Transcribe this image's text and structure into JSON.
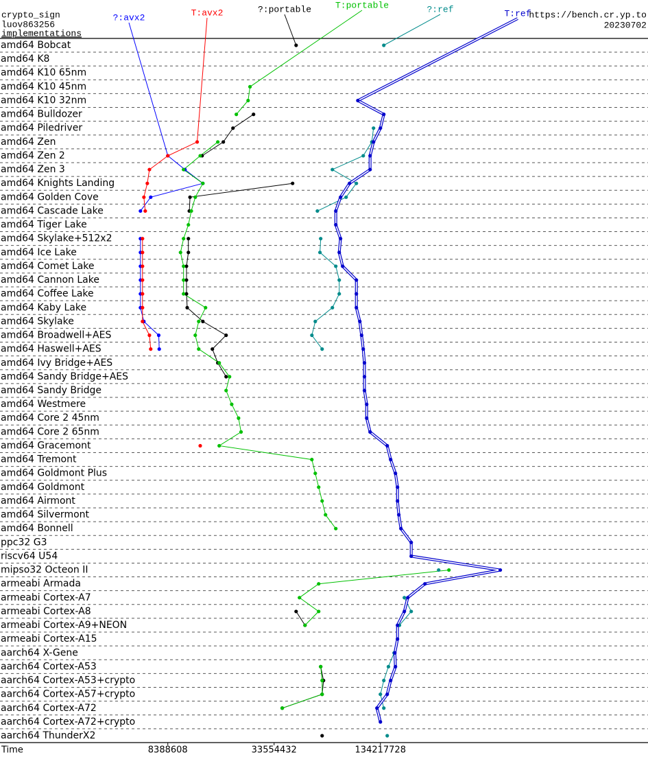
{
  "header": {
    "title": "crypto_sign",
    "subtitle": "luov863256",
    "section": "implementations",
    "url": "https://bench.cr.yp.to",
    "date": "20230702"
  },
  "chart_data": {
    "type": "line",
    "orientation": "horizontal",
    "x_label": "Time",
    "xscale": "log",
    "xlim": [
      940000,
      4400000000
    ],
    "xticks": [
      8388608,
      33554432,
      134217728
    ],
    "categories": [
      "amd64 Bobcat",
      "amd64 K8",
      "amd64 K10 65nm",
      "amd64 K10 45nm",
      "amd64 K10 32nm",
      "amd64 Bulldozer",
      "amd64 Piledriver",
      "amd64 Zen",
      "amd64 Zen 2",
      "amd64 Zen 3",
      "amd64 Knights Landing",
      "amd64 Golden Cove",
      "amd64 Cascade Lake",
      "amd64 Tiger Lake",
      "amd64 Skylake+512x2",
      "amd64 Ice Lake",
      "amd64 Comet Lake",
      "amd64 Cannon Lake",
      "amd64 Coffee Lake",
      "amd64 Kaby Lake",
      "amd64 Skylake",
      "amd64 Broadwell+AES",
      "amd64 Haswell+AES",
      "amd64 Ivy Bridge+AES",
      "amd64 Sandy Bridge+AES",
      "amd64 Sandy Bridge",
      "amd64 Westmere",
      "amd64 Core 2 45nm",
      "amd64 Core 2 65nm",
      "amd64 Gracemont",
      "amd64 Tremont",
      "amd64 Goldmont Plus",
      "amd64 Goldmont",
      "amd64 Airmont",
      "amd64 Silvermont",
      "amd64 Bonnell",
      "ppc32 G3",
      "riscv64 U54",
      "mipso32 Octeon II",
      "armeabi Armada",
      "armeabi Cortex-A7",
      "armeabi Cortex-A8",
      "armeabi Cortex-A9+NEON",
      "armeabi Cortex-A15",
      "aarch64 X-Gene",
      "aarch64 Cortex-A53",
      "aarch64 Cortex-A53+crypto",
      "aarch64 Cortex-A57+crypto",
      "aarch64 Cortex-A72",
      "aarch64 Cortex-A72+crypto",
      "aarch64 ThunderX2"
    ],
    "series": [
      {
        "name": "?:avx2",
        "color": "#0000ff",
        "values": [
          null,
          null,
          null,
          null,
          null,
          null,
          null,
          null,
          8390000,
          10490000,
          13250000,
          6710000,
          5870000,
          null,
          5870000,
          5870000,
          5870000,
          5870000,
          5870000,
          5870000,
          6140000,
          7450000,
          7500000,
          null,
          null,
          null,
          null,
          null,
          null,
          null,
          null,
          null,
          null,
          null,
          null,
          null,
          null,
          null,
          null,
          null,
          null,
          null,
          null,
          null,
          null,
          null,
          null,
          null,
          null,
          null,
          null
        ]
      },
      {
        "name": "T:avx2",
        "color": "#ff0000",
        "values": [
          null,
          null,
          null,
          null,
          null,
          null,
          null,
          12300000,
          8390000,
          6600000,
          6420000,
          6140000,
          6250000,
          null,
          6030000,
          6030000,
          6030000,
          6030000,
          6030000,
          6030000,
          6030000,
          6600000,
          6710000,
          null,
          null,
          null,
          null,
          null,
          null,
          12800000,
          null,
          null,
          null,
          null,
          null,
          null,
          null,
          null,
          null,
          null,
          null,
          null,
          null,
          null,
          null,
          null,
          null,
          null,
          null,
          null,
          null
        ]
      },
      {
        "name": "?:portable",
        "color": "#000000",
        "values": [
          44700000,
          null,
          null,
          null,
          null,
          25650000,
          19620000,
          17300000,
          13120000,
          null,
          42700000,
          11200000,
          11100000,
          null,
          10970000,
          10970000,
          10700000,
          10700000,
          10700000,
          10800000,
          13250000,
          17940000,
          15000000,
          16100000,
          17940000,
          null,
          null,
          null,
          null,
          null,
          null,
          null,
          null,
          null,
          null,
          null,
          null,
          null,
          null,
          null,
          null,
          44700000,
          50200000,
          null,
          null,
          61600000,
          63900000,
          62750000,
          37300000,
          null,
          62750000
        ]
      },
      {
        "name": "T:portable",
        "color": "#00c000",
        "values": [
          null,
          null,
          null,
          24500000,
          23900000,
          20500000,
          null,
          16100000,
          12800000,
          10300000,
          13250000,
          12000000,
          11400000,
          10970000,
          10300000,
          9900000,
          10300000,
          10300000,
          10300000,
          13720000,
          12550000,
          12000000,
          12550000,
          16400000,
          18760000,
          17940000,
          19300000,
          21100000,
          21800000,
          16400000,
          54900000,
          57400000,
          60000000,
          62750000,
          65600000,
          75000000,
          null,
          null,
          328000000,
          60000000,
          46700000,
          60000000,
          50200000,
          null,
          null,
          61600000,
          62750000,
          62750000,
          37300000,
          null,
          null
        ]
      },
      {
        "name": "?:ref",
        "color": "#008b8b",
        "values": [
          140300000,
          null,
          null,
          null,
          null,
          null,
          122700000,
          120000000,
          107300000,
          71750000,
          98100000,
          85800000,
          59000000,
          null,
          61600000,
          61000000,
          75000000,
          78450000,
          78450000,
          71750000,
          57400000,
          54900000,
          62750000,
          null,
          null,
          null,
          null,
          null,
          null,
          null,
          null,
          null,
          null,
          null,
          null,
          null,
          null,
          null,
          286900000,
          null,
          183400000,
          200600000,
          172000000,
          null,
          160400000,
          149000000,
          140300000,
          134200000,
          140300000,
          null,
          146700000
        ]
      },
      {
        "name": "T:ref",
        "color": "#0000cc",
        "style": "double",
        "values": [
          null,
          null,
          null,
          null,
          100000000,
          140300000,
          134200000,
          122700000,
          117300000,
          117300000,
          89700000,
          79800000,
          75000000,
          75000000,
          79800000,
          78450000,
          82000000,
          98100000,
          98100000,
          98100000,
          102600000,
          105000000,
          107300000,
          109000000,
          109000000,
          109000000,
          112200000,
          112200000,
          117300000,
          146700000,
          153400000,
          163300000,
          167700000,
          167700000,
          170600000,
          175400000,
          200600000,
          200600000,
          641000000,
          239900000,
          191800000,
          183400000,
          167700000,
          167700000,
          162000000,
          163300000,
          153400000,
          146700000,
          128300000,
          134200000,
          null
        ]
      }
    ]
  }
}
